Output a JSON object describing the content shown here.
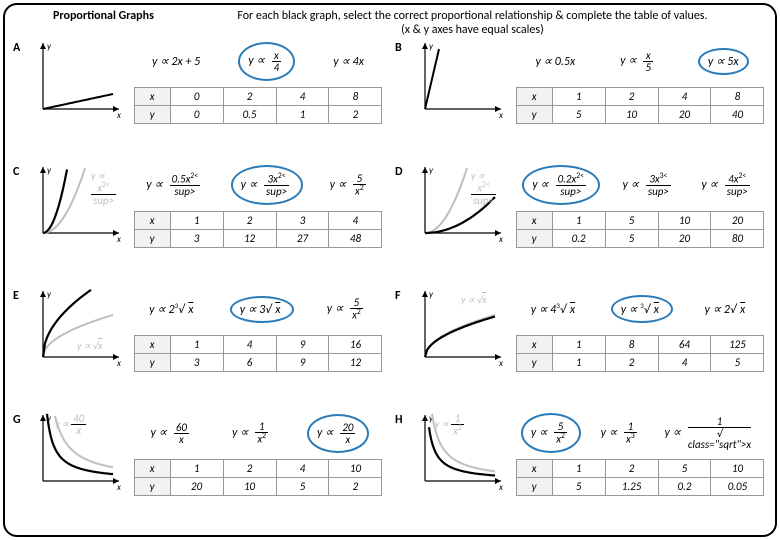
{
  "title": "Proportional Graphs",
  "instructions1": "For each black graph, select the correct proportional relationship & complete the table of values.",
  "instructions2": "(x & y axes have equal scales)",
  "circle_color": "#2b7bb9",
  "gray": "#bfbfbf",
  "border_color": "#999999",
  "panels": [
    {
      "label": "A",
      "graph": {
        "type": "linear",
        "black_slope": 0.25,
        "gray": null,
        "hint": null
      },
      "exprs": [
        "y ∝ 2x + 5",
        "y ∝ x/4",
        "y ∝ 4x"
      ],
      "circled_index": 1,
      "table": {
        "headers": [
          "x",
          "y"
        ],
        "cols": [
          [
            0,
            0
          ],
          [
            2,
            0.5
          ],
          [
            4,
            1
          ],
          [
            8,
            2
          ]
        ]
      }
    },
    {
      "label": "B",
      "graph": {
        "type": "linear",
        "black_slope": 5,
        "gray": null,
        "hint": null
      },
      "exprs": [
        "y ∝ 0.5x",
        "y ∝ x/5",
        "y ∝ 5x"
      ],
      "circled_index": 2,
      "table": {
        "headers": [
          "x",
          "y"
        ],
        "cols": [
          [
            1,
            5
          ],
          [
            2,
            10
          ],
          [
            4,
            20
          ],
          [
            8,
            40
          ]
        ]
      }
    },
    {
      "label": "C",
      "graph": {
        "type": "power2",
        "black_k": 3,
        "gray_k": 1,
        "hint": "y ∝ x²",
        "hint_pos": [
          60,
          6
        ]
      },
      "exprs": [
        "y ∝ 0.5x²",
        "y ∝ 3x²",
        "y ∝ 5/x²"
      ],
      "circled_index": 1,
      "table": {
        "headers": [
          "x",
          "y"
        ],
        "cols": [
          [
            1,
            3
          ],
          [
            2,
            12
          ],
          [
            3,
            27
          ],
          [
            4,
            48
          ]
        ]
      }
    },
    {
      "label": "D",
      "graph": {
        "type": "power2",
        "black_k": 0.2,
        "gray_k": 1,
        "hint": "y ∝ x²",
        "hint_pos": [
          58,
          6
        ]
      },
      "exprs": [
        "y ∝ 0.2x²",
        "y ∝ 3x³",
        "y ∝ 4x²"
      ],
      "circled_index": 0,
      "table": {
        "headers": [
          "x",
          "y"
        ],
        "cols": [
          [
            1,
            0.2
          ],
          [
            5,
            5
          ],
          [
            10,
            20
          ],
          [
            20,
            80
          ]
        ]
      }
    },
    {
      "label": "E",
      "graph": {
        "type": "sqrt",
        "black_k": 3,
        "gray_k": 1,
        "hint": "y ∝ √x",
        "hint_pos": [
          46,
          52
        ]
      },
      "exprs": [
        "y ∝ 2³√x",
        "y ∝ 3√x",
        "y ∝ 5/x²"
      ],
      "circled_index": 1,
      "table": {
        "headers": [
          "x",
          "y"
        ],
        "cols": [
          [
            1,
            3
          ],
          [
            4,
            6
          ],
          [
            9,
            9
          ],
          [
            16,
            12
          ]
        ]
      }
    },
    {
      "label": "F",
      "graph": {
        "type": "sqrt",
        "black_k": 1.5,
        "gray_k": 1,
        "hint": "y ∝ √x",
        "hint_pos": [
          48,
          6
        ]
      },
      "exprs": [
        "y ∝ 4³√x",
        "y ∝ ³√x",
        "y ∝ 2√x"
      ],
      "circled_index": 1,
      "table": {
        "headers": [
          "x",
          "y"
        ],
        "cols": [
          [
            1,
            1
          ],
          [
            8,
            2
          ],
          [
            64,
            4
          ],
          [
            125,
            5
          ]
        ]
      }
    },
    {
      "label": "G",
      "graph": {
        "type": "recip",
        "black_k": 1,
        "gray_k": 2,
        "hint": "y ∝ 40/x",
        "hint_pos": [
          24,
          2
        ]
      },
      "exprs": [
        "y ∝ 60/x",
        "y ∝ 1/x²",
        "y ∝ 20/x"
      ],
      "circled_index": 2,
      "table": {
        "headers": [
          "x",
          "y"
        ],
        "cols": [
          [
            1,
            20
          ],
          [
            2,
            10
          ],
          [
            4,
            5
          ],
          [
            10,
            2
          ]
        ]
      }
    },
    {
      "label": "H",
      "graph": {
        "type": "recip",
        "black_k": 0.8,
        "gray_k": 1.4,
        "hint": "y ∝ 1/x²",
        "hint_pos": [
          22,
          2
        ]
      },
      "exprs": [
        "y ∝ 5/x²",
        "y ∝ 1/x³",
        "y ∝ 1/√x"
      ],
      "circled_index": 0,
      "table": {
        "headers": [
          "x",
          "y"
        ],
        "cols": [
          [
            1,
            5
          ],
          [
            2,
            1.25
          ],
          [
            5,
            0.2
          ],
          [
            10,
            0.05
          ]
        ]
      }
    }
  ]
}
